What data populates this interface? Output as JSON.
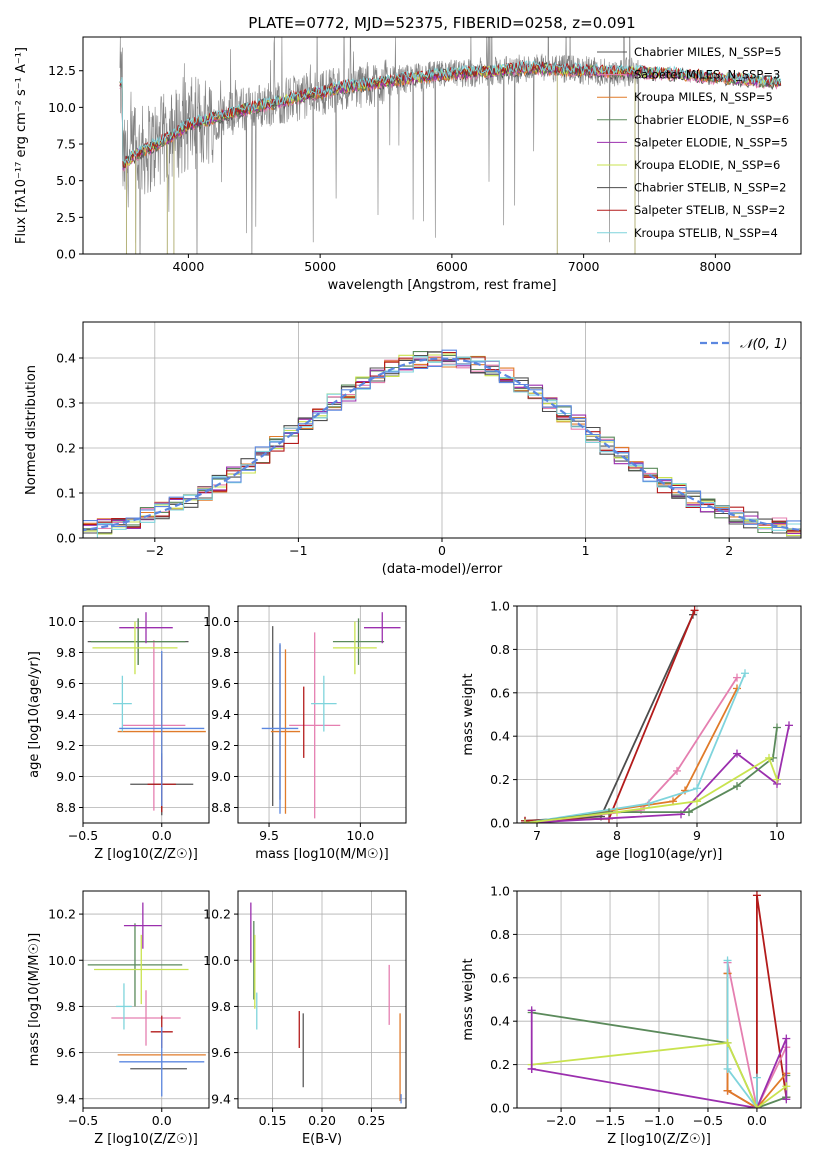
{
  "chart_data": [
    {
      "type": "line",
      "title": "PLATE=0772, MJD=52375, FIBERID=0258, z=0.091",
      "xlabel": "wavelength [Angstrom, rest frame]",
      "ylabel": "Flux [fλ10⁻¹⁷ erg cm⁻² s⁻¹ A⁻¹]",
      "xlim": [
        3200,
        8650
      ],
      "ylim": [
        0,
        14.8
      ],
      "xticks": [
        "4000",
        "5000",
        "6000",
        "7000",
        "8000"
      ],
      "yticks": [
        "0.0",
        "2.5",
        "5.0",
        "7.5",
        "10.0",
        "12.5"
      ],
      "legend_position": "right",
      "legend": [
        "Chabrier MILES, N_SSP=5",
        "Salpeter MILES, N_SSP=3",
        "Kroupa MILES, N_SSP=5",
        "Chabrier ELODIE, N_SSP=6",
        "Salpeter ELODIE, N_SSP=5",
        "Kroupa ELODIE, N_SSP=6",
        "Chabrier STELIB, N_SSP=2",
        "Salpeter STELIB, N_SSP=2",
        "Kroupa STELIB, N_SSP=4"
      ],
      "observed_spectrum_color": "#808080",
      "model_envelope": {
        "x": [
          3500,
          3600,
          3700,
          3800,
          3900,
          4000,
          4200,
          4400,
          4600,
          4800,
          5000,
          5200,
          5400,
          5600,
          5800,
          6000,
          6200,
          6400,
          6600,
          6800,
          7000,
          7200,
          7400,
          7600,
          7800,
          8000,
          8200,
          8400
        ],
        "y": [
          6.0,
          6.8,
          7.2,
          7.7,
          8.2,
          8.8,
          9.3,
          9.8,
          10.2,
          10.6,
          11.0,
          11.4,
          11.6,
          11.9,
          12.1,
          12.3,
          12.4,
          12.5,
          12.7,
          12.6,
          12.5,
          12.4,
          12.4,
          12.3,
          12.2,
          12.0,
          11.9,
          11.7
        ]
      }
    },
    {
      "type": "step",
      "xlabel": "(data-model)/error",
      "ylabel": "Normed distribution",
      "xlim": [
        -2.5,
        2.5
      ],
      "ylim": [
        0,
        0.48
      ],
      "xticks": [
        "−2",
        "−1",
        "0",
        "1",
        "2"
      ],
      "yticks": [
        "0.0",
        "0.1",
        "0.2",
        "0.3",
        "0.4"
      ],
      "legend": [
        "N(0,1)"
      ],
      "reference_curve": "N(0,1)"
    },
    {
      "type": "scatter",
      "xlabel": "Z [log10(Z/Z☉)]",
      "ylabel": "age  [log10(age/yr)]",
      "xlim": [
        -0.5,
        0.3
      ],
      "ylim": [
        8.7,
        10.1
      ],
      "xticks": [
        "−0.5",
        "0.0"
      ],
      "yticks": [
        "8.8",
        "9.0",
        "9.2",
        "9.4",
        "9.6",
        "9.8",
        "10.0"
      ],
      "points": [
        {
          "x": -0.15,
          "y": 9.87,
          "xerr": 0.32,
          "yerr": 0.15,
          "c": "#5a5a5a"
        },
        {
          "x": -0.05,
          "y": 9.33,
          "xerr": 0.2,
          "yerr": 0.55,
          "c": "#e57fb0"
        },
        {
          "x": 0.0,
          "y": 9.29,
          "xerr": 0.28,
          "yerr": 0.5,
          "c": "#e07b2a"
        },
        {
          "x": -0.15,
          "y": 9.87,
          "xerr": 0.3,
          "yerr": 0.15,
          "c": "#5b8a5b"
        },
        {
          "x": -0.1,
          "y": 9.96,
          "xerr": 0.17,
          "yerr": 0.1,
          "c": "#9b2fae"
        },
        {
          "x": -0.17,
          "y": 9.83,
          "xerr": 0.27,
          "yerr": 0.17,
          "c": "#c9e34f"
        },
        {
          "x": 0.0,
          "y": 8.95,
          "xerr": 0.2,
          "yerr": 0.2,
          "c": "#555555"
        },
        {
          "x": 0.0,
          "y": 8.95,
          "xerr": 0.09,
          "yerr": 0.18,
          "c": "#b31b1b"
        },
        {
          "x": -0.25,
          "y": 9.47,
          "xerr": 0.06,
          "yerr": 0.18,
          "c": "#7fd4dc"
        },
        {
          "x": 0.0,
          "y": 9.31,
          "xerr": 0.27,
          "yerr": 0.5,
          "c": "#5b87e0"
        }
      ]
    },
    {
      "type": "scatter",
      "xlabel": "mass [log10(M/M☉)]",
      "xlim": [
        9.33,
        10.25
      ],
      "ylim": [
        8.7,
        10.1
      ],
      "xticks": [
        "9.5",
        "10.0"
      ],
      "yticks": [
        "8.8",
        "9.0",
        "9.2",
        "9.4",
        "9.6",
        "9.8",
        "10.0"
      ],
      "points": [
        {
          "x": 9.52,
          "y": 9.39,
          "xerr": 0.0,
          "yerr": 0.58,
          "c": "#5a5a5a"
        },
        {
          "x": 9.75,
          "y": 9.33,
          "xerr": 0.14,
          "yerr": 0.6,
          "c": "#e57fb0"
        },
        {
          "x": 9.59,
          "y": 9.29,
          "xerr": 0.08,
          "yerr": 0.53,
          "c": "#e07b2a"
        },
        {
          "x": 9.99,
          "y": 9.87,
          "xerr": 0.14,
          "yerr": 0.15,
          "c": "#5b8a5b"
        },
        {
          "x": 10.12,
          "y": 9.96,
          "xerr": 0.1,
          "yerr": 0.1,
          "c": "#9b2fae"
        },
        {
          "x": 9.97,
          "y": 9.83,
          "xerr": 0.12,
          "yerr": 0.17,
          "c": "#c9e34f"
        },
        {
          "x": 9.56,
          "y": 9.35,
          "xerr": 0.0,
          "yerr": 0.5,
          "c": "#555555"
        },
        {
          "x": 9.69,
          "y": 9.35,
          "xerr": 0.0,
          "yerr": 0.23,
          "c": "#b31b1b"
        },
        {
          "x": 9.8,
          "y": 9.47,
          "xerr": 0.07,
          "yerr": 0.18,
          "c": "#7fd4dc"
        },
        {
          "x": 9.56,
          "y": 9.31,
          "xerr": 0.1,
          "yerr": 0.55,
          "c": "#5b87e0"
        }
      ]
    },
    {
      "type": "line",
      "xlabel": "age  [log10(age/yr)]",
      "ylabel": "mass weight",
      "xlim": [
        6.75,
        10.3
      ],
      "ylim": [
        0,
        1
      ],
      "xticks": [
        "7",
        "8",
        "9",
        "10"
      ],
      "yticks": [
        "0.0",
        "0.2",
        "0.4",
        "0.6",
        "0.8",
        "1.0"
      ],
      "series": [
        {
          "x": [
            6.85,
            7.8,
            8.95
          ],
          "y": [
            0.01,
            0.03,
            0.96
          ],
          "c": "#4d4d4d"
        },
        {
          "x": [
            6.85,
            7.9,
            8.97
          ],
          "y": [
            0.01,
            0.02,
            0.98
          ],
          "c": "#b31b1b"
        },
        {
          "x": [
            6.85,
            8.3,
            8.75,
            9.5
          ],
          "y": [
            0.0,
            0.06,
            0.24,
            0.67
          ],
          "c": "#e57fb0"
        },
        {
          "x": [
            6.85,
            8.7,
            8.85,
            9.5
          ],
          "y": [
            0.0,
            0.1,
            0.15,
            0.62
          ],
          "c": "#e07b2a"
        },
        {
          "x": [
            6.85,
            8.4,
            9.0,
            9.6
          ],
          "y": [
            0.0,
            0.09,
            0.16,
            0.69
          ],
          "c": "#7fd4dc"
        },
        {
          "x": [
            6.85,
            8.8,
            9.5,
            10.0,
            10.15
          ],
          "y": [
            0.0,
            0.04,
            0.32,
            0.18,
            0.45
          ],
          "c": "#9b2fae"
        },
        {
          "x": [
            6.85,
            7.9,
            8.9,
            9.5,
            9.95,
            10.0
          ],
          "y": [
            0.0,
            0.05,
            0.05,
            0.17,
            0.3,
            0.44
          ],
          "c": "#5b8a5b"
        },
        {
          "x": [
            6.85,
            8.0,
            9.0,
            9.9,
            10.0
          ],
          "y": [
            0.0,
            0.05,
            0.1,
            0.3,
            0.2
          ],
          "c": "#c9e34f"
        }
      ]
    },
    {
      "type": "scatter",
      "xlabel": "Z [log10(Z/Z☉)]",
      "ylabel": "mass [log10(M/M☉)]",
      "xlim": [
        -0.5,
        0.3
      ],
      "ylim": [
        9.36,
        10.3
      ],
      "xticks": [
        "−0.5",
        "0.0"
      ],
      "yticks": [
        "9.4",
        "9.6",
        "9.8",
        "10.0",
        "10.2"
      ],
      "points": [
        {
          "x": -0.02,
          "y": 9.53,
          "xerr": 0.18,
          "yerr": 0.0,
          "c": "#5a5a5a"
        },
        {
          "x": -0.1,
          "y": 9.75,
          "xerr": 0.22,
          "yerr": 0.12,
          "c": "#e57fb0"
        },
        {
          "x": 0.0,
          "y": 9.59,
          "xerr": 0.28,
          "yerr": 0.0,
          "c": "#e07b2a"
        },
        {
          "x": -0.17,
          "y": 9.98,
          "xerr": 0.3,
          "yerr": 0.18,
          "c": "#5b8a5b"
        },
        {
          "x": -0.12,
          "y": 10.15,
          "xerr": 0.12,
          "yerr": 0.1,
          "c": "#9b2fae"
        },
        {
          "x": -0.13,
          "y": 9.96,
          "xerr": 0.3,
          "yerr": 0.15,
          "c": "#c9e34f"
        },
        {
          "x": 0.0,
          "y": 9.69,
          "xerr": 0.07,
          "yerr": 0.07,
          "c": "#b31b1b"
        },
        {
          "x": -0.24,
          "y": 9.8,
          "xerr": 0.05,
          "yerr": 0.1,
          "c": "#7fd4dc"
        },
        {
          "x": 0.0,
          "y": 9.56,
          "xerr": 0.27,
          "yerr": 0.15,
          "c": "#5b87e0"
        }
      ]
    },
    {
      "type": "scatter",
      "xlabel": "E(B-V)",
      "xlim": [
        0.115,
        0.285
      ],
      "ylim": [
        9.36,
        10.3
      ],
      "xticks": [
        "0.15",
        "0.20",
        "0.25"
      ],
      "yticks": [
        "9.4",
        "9.6",
        "9.8",
        "10.0",
        "10.2"
      ],
      "points": [
        {
          "x": 0.128,
          "y": 10.12,
          "xerr": 0.0,
          "yerr": 0.13,
          "c": "#9b2fae"
        },
        {
          "x": 0.131,
          "y": 10.0,
          "xerr": 0.0,
          "yerr": 0.17,
          "c": "#5b8a5b"
        },
        {
          "x": 0.132,
          "y": 9.95,
          "xerr": 0.0,
          "yerr": 0.16,
          "c": "#c9e34f"
        },
        {
          "x": 0.134,
          "y": 9.78,
          "xerr": 0.0,
          "yerr": 0.08,
          "c": "#7fd4dc"
        },
        {
          "x": 0.177,
          "y": 9.7,
          "xerr": 0.0,
          "yerr": 0.08,
          "c": "#b31b1b"
        },
        {
          "x": 0.181,
          "y": 9.61,
          "xerr": 0.0,
          "yerr": 0.16,
          "c": "#5a5a5a"
        },
        {
          "x": 0.268,
          "y": 9.85,
          "xerr": 0.0,
          "yerr": 0.13,
          "c": "#e57fb0"
        },
        {
          "x": 0.279,
          "y": 9.58,
          "xerr": 0.0,
          "yerr": 0.19,
          "c": "#e07b2a"
        },
        {
          "x": 0.28,
          "y": 9.4,
          "xerr": 0.0,
          "yerr": 0.02,
          "c": "#5b87e0"
        }
      ]
    },
    {
      "type": "line",
      "xlabel": "Z [log10(Z/Z☉)]",
      "ylabel": "mass weight",
      "xlim": [
        -2.45,
        0.45
      ],
      "ylim": [
        0,
        1
      ],
      "xticks": [
        "−2.0",
        "−1.5",
        "−1.0",
        "−0.5",
        "0.0"
      ],
      "yticks": [
        "0.0",
        "0.2",
        "0.4",
        "0.6",
        "0.8",
        "1.0"
      ],
      "series": [
        {
          "x": [
            -0.3,
            -0.3,
            0.0,
            0.0,
            0.3
          ],
          "y": [
            0.62,
            0.08,
            0.0,
            0.98,
            0.05
          ],
          "c": "#b31b1b"
        },
        {
          "x": [
            -2.3,
            -0.3,
            0.0,
            0.3,
            0.3
          ],
          "y": [
            0.44,
            0.3,
            0.0,
            0.05,
            0.15
          ],
          "c": "#5b8a5b"
        },
        {
          "x": [
            -0.3,
            0.0,
            0.3
          ],
          "y": [
            0.67,
            0.0,
            0.28
          ],
          "c": "#e57fb0"
        },
        {
          "x": [
            -0.3,
            -0.3,
            0.0,
            0.3
          ],
          "y": [
            0.62,
            0.08,
            0.0,
            0.16
          ],
          "c": "#e07b2a"
        },
        {
          "x": [
            -0.3,
            -0.3,
            0.0,
            0.0
          ],
          "y": [
            0.68,
            0.18,
            0.0,
            0.14
          ],
          "c": "#7fd4dc"
        },
        {
          "x": [
            -2.3,
            0.0,
            0.3,
            0.3
          ],
          "y": [
            0.18,
            0.0,
            0.32,
            0.04
          ],
          "c": "#9b2fae"
        },
        {
          "x": [
            -2.3,
            -0.3,
            0.0,
            0.3
          ],
          "y": [
            0.2,
            0.3,
            0.0,
            0.1
          ],
          "c": "#c9e34f"
        },
        {
          "x": [
            -2.3,
            -2.3
          ],
          "y": [
            0.18,
            0.45
          ],
          "c": "#9b2fae"
        }
      ]
    }
  ]
}
